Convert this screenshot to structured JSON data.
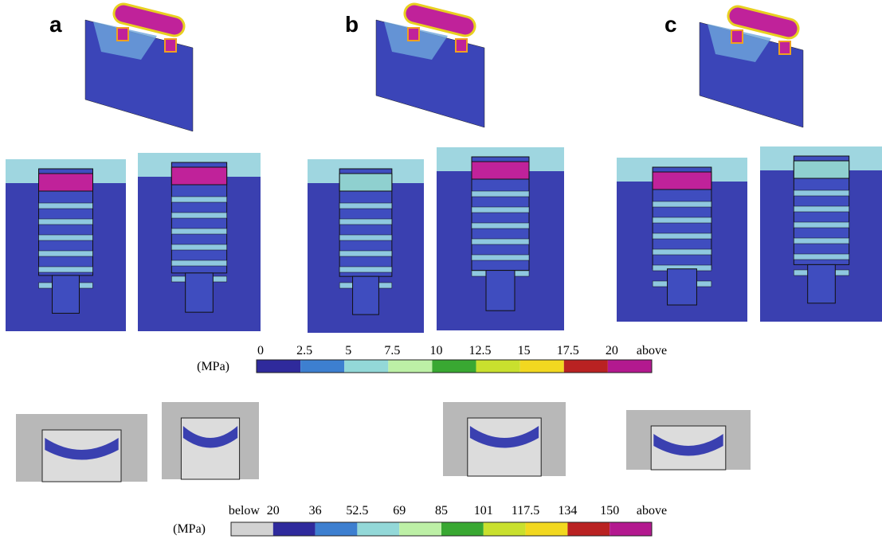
{
  "panels": [
    {
      "label": "a"
    },
    {
      "label": "b"
    },
    {
      "label": "c"
    }
  ],
  "scales": [
    {
      "unit": "(MPa)",
      "labels": [
        "0",
        "2.5",
        "5",
        "7.5",
        "10",
        "12.5",
        "15",
        "17.5",
        "20",
        "above"
      ],
      "colors": [
        "#2f2a9c",
        "#3d7fd0",
        "#93d8d8",
        "#bdf0a6",
        "#39a832",
        "#c9e02e",
        "#f2d820",
        "#b92222",
        "#b3198f"
      ]
    },
    {
      "unit": "(MPa)",
      "labels": [
        "below",
        "20",
        "36",
        "52.5",
        "69",
        "85",
        "101",
        "117.5",
        "134",
        "150",
        "above"
      ],
      "colors": [
        "#d2d2d2",
        "#2f2a9c",
        "#3d7fd0",
        "#93d8d8",
        "#bdf0a6",
        "#39a832",
        "#c9e02e",
        "#f2d820",
        "#b92222",
        "#b3198f"
      ]
    }
  ]
}
